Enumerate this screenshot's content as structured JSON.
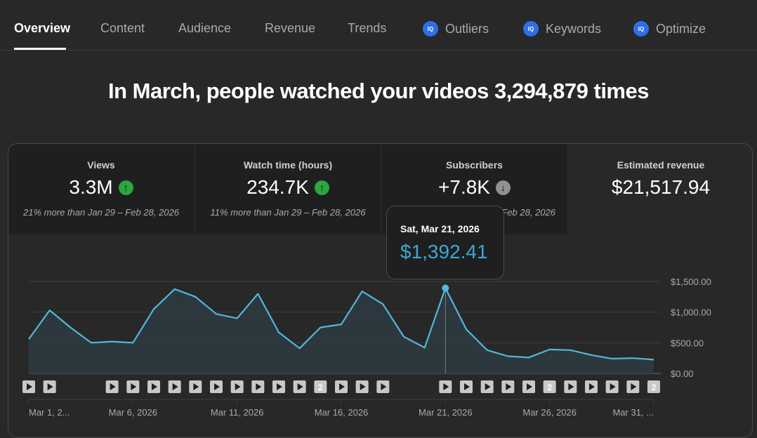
{
  "tabs": [
    {
      "label": "Overview",
      "active": true,
      "badge": false
    },
    {
      "label": "Content",
      "active": false,
      "badge": false
    },
    {
      "label": "Audience",
      "active": false,
      "badge": false
    },
    {
      "label": "Revenue",
      "active": false,
      "badge": false
    },
    {
      "label": "Trends",
      "active": false,
      "badge": false
    },
    {
      "label": "Outliers",
      "active": false,
      "badge": true
    },
    {
      "label": "Keywords",
      "active": false,
      "badge": true
    },
    {
      "label": "Optimize",
      "active": false,
      "badge": true
    }
  ],
  "badge_text": "IQ",
  "headline": "In March, people watched your videos 3,294,879 times",
  "metrics": [
    {
      "label": "Views",
      "value": "3.3M",
      "trend": "up",
      "comparison": "21% more than Jan 29 – Feb 28, 2026"
    },
    {
      "label": "Watch time (hours)",
      "value": "234.7K",
      "trend": "up",
      "comparison": "11% more than Jan 29 – Feb 28, 2026"
    },
    {
      "label": "Subscribers",
      "value": "+7.8K",
      "trend": "down",
      "comparison": "Feb 28, 2026"
    },
    {
      "label": "Estimated revenue",
      "value": "$21,517.94",
      "trend": "none",
      "comparison": ""
    }
  ],
  "tooltip": {
    "date": "Sat, Mar 21, 2026",
    "value": "$1,392.41"
  },
  "colors": {
    "line": "#4fb8dd",
    "area": "#2d3a40",
    "up": "#2ba640",
    "down": "#909090",
    "accent": "#2e6fe8"
  },
  "chart_data": {
    "type": "area",
    "metric": "Estimated revenue",
    "x": [
      "Mar 1",
      "Mar 2",
      "Mar 3",
      "Mar 4",
      "Mar 5",
      "Mar 6",
      "Mar 7",
      "Mar 8",
      "Mar 9",
      "Mar 10",
      "Mar 11",
      "Mar 12",
      "Mar 13",
      "Mar 14",
      "Mar 15",
      "Mar 16",
      "Mar 17",
      "Mar 18",
      "Mar 19",
      "Mar 20",
      "Mar 21",
      "Mar 22",
      "Mar 23",
      "Mar 24",
      "Mar 25",
      "Mar 26",
      "Mar 27",
      "Mar 28",
      "Mar 29",
      "Mar 30",
      "Mar 31"
    ],
    "values": [
      560,
      1030,
      750,
      500,
      520,
      500,
      1050,
      1375,
      1250,
      970,
      900,
      1300,
      670,
      410,
      750,
      800,
      1340,
      1130,
      600,
      420,
      1392.41,
      720,
      380,
      280,
      260,
      390,
      380,
      300,
      240,
      250,
      225
    ],
    "ylim": [
      0,
      1500
    ],
    "y_ticks": [
      "$1,500.00",
      "$1,000.00",
      "$500.00",
      "$0.00"
    ],
    "y_tick_values": [
      1500,
      1000,
      500,
      0
    ],
    "x_tick_labels": [
      {
        "label": "Mar 1, 2...",
        "index": 0
      },
      {
        "label": "Mar 6, 2026",
        "index": 5
      },
      {
        "label": "Mar 11, 2026",
        "index": 10
      },
      {
        "label": "Mar 16, 2026",
        "index": 15
      },
      {
        "label": "Mar 21, 2026",
        "index": 20
      },
      {
        "label": "Mar 26, 2026",
        "index": 25
      },
      {
        "label": "Mar 31, ...",
        "index": 30
      }
    ],
    "highlight_index": 20,
    "grid": true,
    "markers": [
      "play",
      "play",
      "",
      "",
      "play",
      "play",
      "play",
      "play",
      "play",
      "play",
      "play",
      "play",
      "play",
      "play",
      "2",
      "play",
      "play",
      "play",
      "",
      "",
      "play",
      "play",
      "play",
      "play",
      "play",
      "2",
      "play",
      "play",
      "play",
      "play",
      "2"
    ]
  }
}
